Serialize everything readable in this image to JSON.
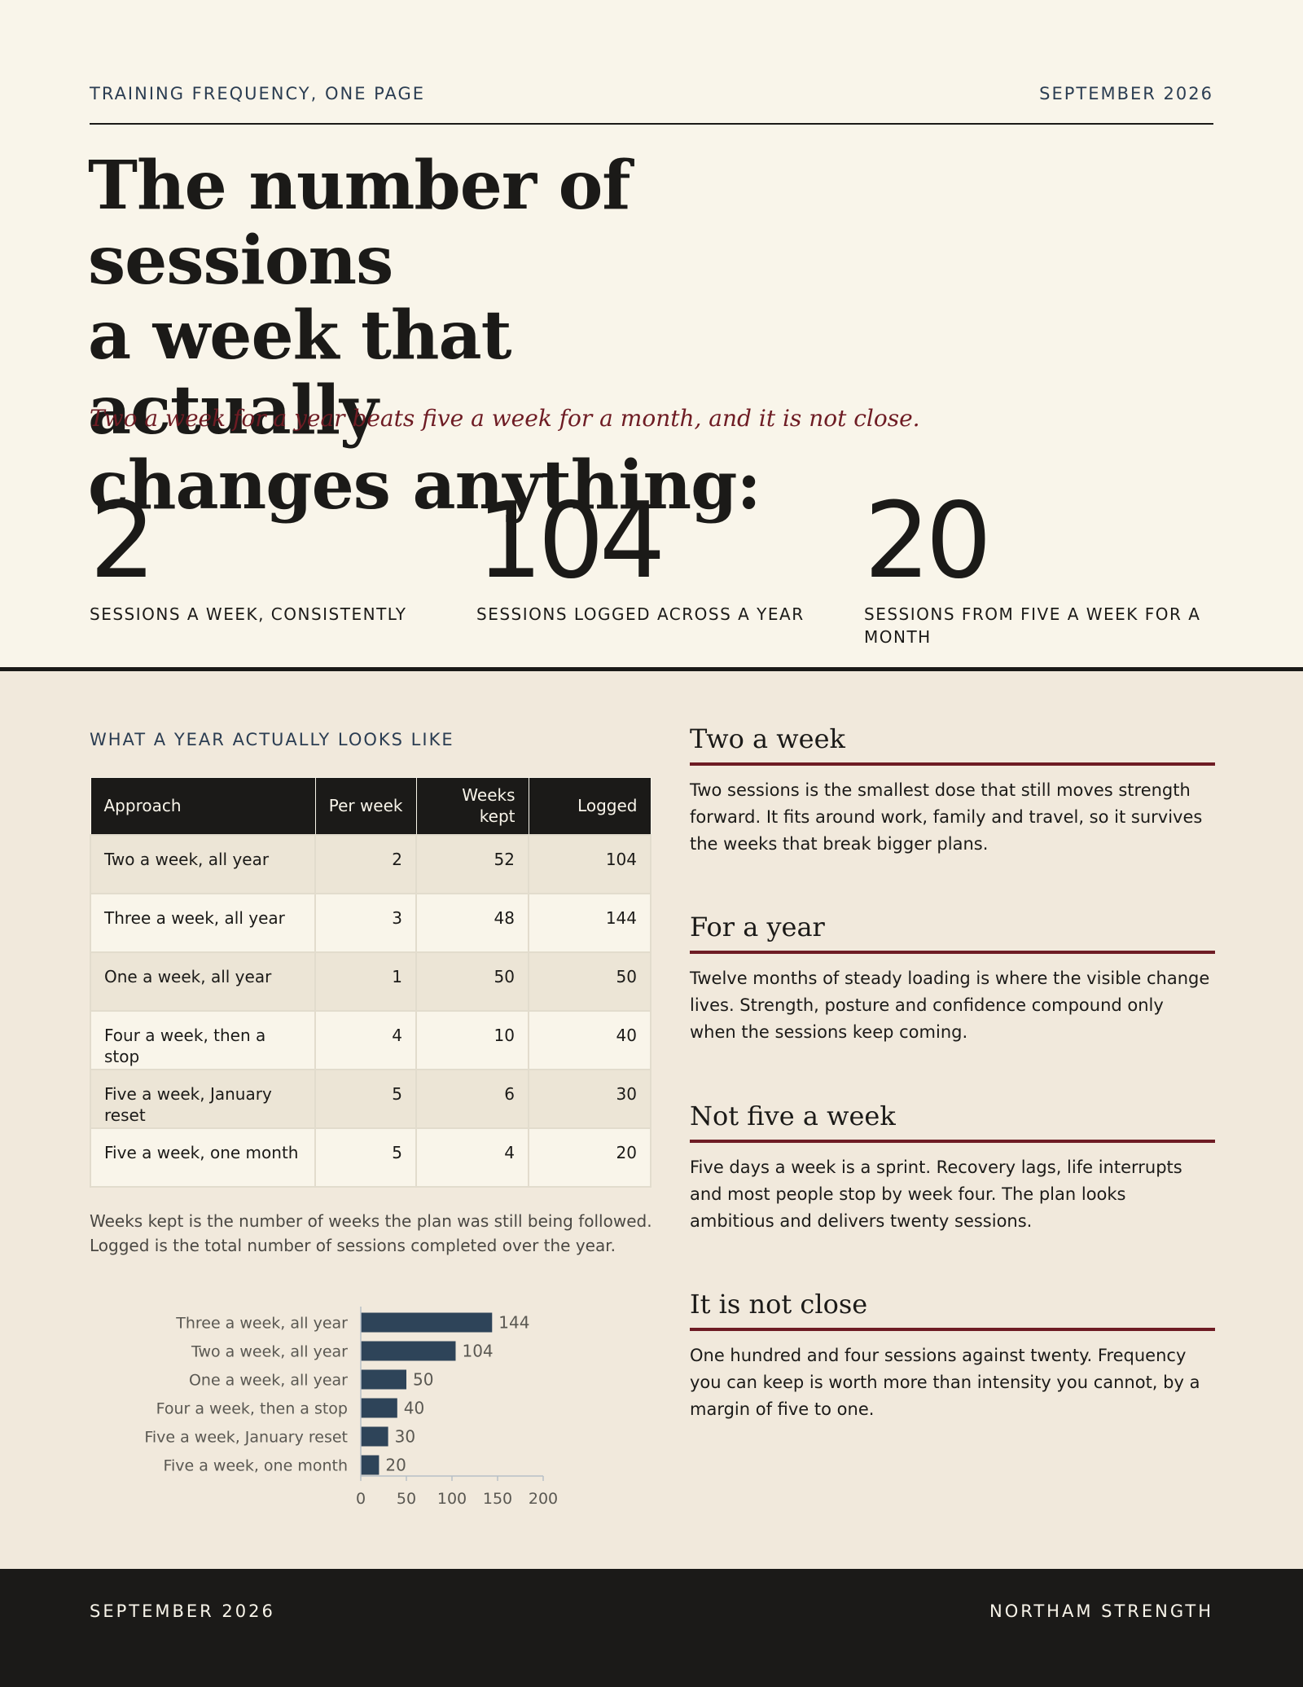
{
  "header": {
    "kicker_left": "TRAINING FREQUENCY, ONE PAGE",
    "kicker_right": "SEPTEMBER 2026",
    "headline_lines": [
      "The number of sessions",
      "a week that actually",
      "changes anything:"
    ],
    "dek": "Two a week for a year beats five a week for a month, and it is not close."
  },
  "stats": [
    {
      "value": "2",
      "label": "SESSIONS A WEEK, CONSISTENTLY"
    },
    {
      "value": "104",
      "label": "SESSIONS LOGGED ACROSS A YEAR"
    },
    {
      "value": "20",
      "label": "SESSIONS FROM FIVE A WEEK FOR A MONTH"
    }
  ],
  "year_section": {
    "title": "WHAT A YEAR ACTUALLY LOOKS LIKE",
    "columns": [
      "Approach",
      "Per week",
      "Weeks kept",
      "Logged"
    ],
    "rows": [
      {
        "approach": "Two a week, all year",
        "per_week": "2",
        "weeks_kept": "52",
        "logged": "104"
      },
      {
        "approach": "Three a week, all year",
        "per_week": "3",
        "weeks_kept": "48",
        "logged": "144"
      },
      {
        "approach": "One a week, all year",
        "per_week": "1",
        "weeks_kept": "50",
        "logged": "50"
      },
      {
        "approach": "Four a week, then a stop",
        "per_week": "4",
        "weeks_kept": "10",
        "logged": "40"
      },
      {
        "approach": "Five a week, January reset",
        "per_week": "5",
        "weeks_kept": "6",
        "logged": "30"
      },
      {
        "approach": "Five a week, one month",
        "per_week": "5",
        "weeks_kept": "4",
        "logged": "20"
      }
    ],
    "note": "Weeks kept is the number of weeks the plan was still being followed. Logged is the total number of sessions completed over the year."
  },
  "chart_data": {
    "type": "bar",
    "orientation": "horizontal",
    "categories": [
      "Three a week, all year",
      "Two a week, all year",
      "One a week, all year",
      "Four a week, then a stop",
      "Five a week, January reset",
      "Five a week, one month"
    ],
    "values": [
      144,
      104,
      50,
      40,
      30,
      20
    ],
    "xlim": [
      0,
      200
    ],
    "xticks": [
      0,
      50,
      100,
      150,
      200
    ],
    "bar_color": "#2e4459",
    "title": "",
    "xlabel": "",
    "ylabel": ""
  },
  "side_sections": [
    {
      "heading": "Two a week",
      "body": "Two sessions is the smallest dose that still moves strength forward. It fits around work, family and travel, so it survives the weeks that break bigger plans."
    },
    {
      "heading": "For a year",
      "body": "Twelve months of steady loading is where the visible change lives. Strength, posture and confidence compound only when the sessions keep coming."
    },
    {
      "heading": "Not five a week",
      "body": "Five days a week is a sprint. Recovery lags, life interrupts and most people stop by week four. The plan looks ambitious and delivers twenty sessions."
    },
    {
      "heading": "It is not close",
      "body": "One hundred and four sessions against twenty. Frequency you can keep is worth more than intensity you cannot, by a margin of five to one."
    }
  ],
  "footer": {
    "left": "SEPTEMBER 2026",
    "right": "NORTHAM STRENGTH"
  },
  "colors": {
    "accent": "#6e1c24",
    "navy": "#2b3d52",
    "ink": "#1b1a18",
    "paper": "#f9f5ea",
    "panel": "#f1e9dc"
  }
}
